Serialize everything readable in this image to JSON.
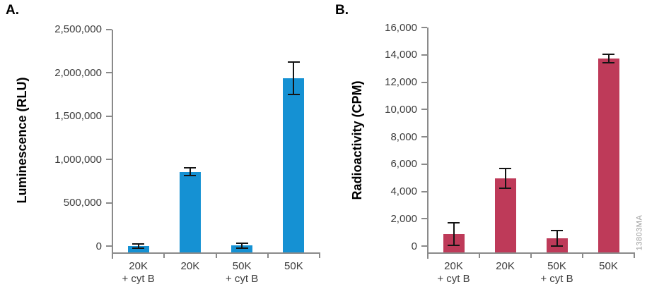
{
  "figure": {
    "watermark": "13803MA",
    "colors": {
      "panel_a_bar": "#1591D3",
      "panel_b_bar": "#BE3A59",
      "axis": "#8A8A8A",
      "error_bar": "#141414",
      "tick_text": "#3C3C3C",
      "watermark_text": "#9B9B9B"
    }
  },
  "chart_data": [
    {
      "id": "a",
      "panel_label": "A.",
      "type": "bar",
      "ylabel": "Luminescence (RLU)",
      "xlabel": "",
      "categories": [
        [
          "20K",
          "+ cyt B"
        ],
        [
          "20K"
        ],
        [
          "50K",
          "+ cyt B"
        ],
        [
          "50K"
        ]
      ],
      "values": [
        70000,
        880000,
        75000,
        1900000
      ],
      "errors": [
        25000,
        45000,
        25000,
        180000
      ],
      "ylim": [
        0,
        2500000
      ],
      "ytick_step": 500000,
      "ytick_labels": [
        "0",
        "500,000",
        "1,000,000",
        "1,500,000",
        "2,000,000",
        "2,500,000"
      ],
      "bar_color": "#1591D3",
      "legend": "none",
      "grid": "off"
    },
    {
      "id": "b",
      "panel_label": "B.",
      "type": "bar",
      "ylabel": "Radioactivity (CPM)",
      "xlabel": "",
      "categories": [
        [
          "20K",
          "+ cyt B"
        ],
        [
          "20K"
        ],
        [
          "50K",
          "+ cyt B"
        ],
        [
          "50K"
        ]
      ],
      "values": [
        1300,
        5200,
        1000,
        13600
      ],
      "errors": [
        800,
        700,
        550,
        300
      ],
      "ylim": [
        0,
        16000
      ],
      "ytick_step": 2000,
      "ytick_labels": [
        "0",
        "2,000",
        "4,000",
        "6,000",
        "8,000",
        "10,000",
        "12,000",
        "14,000",
        "16,000"
      ],
      "bar_color": "#BE3A59",
      "legend": "none",
      "grid": "off"
    }
  ]
}
